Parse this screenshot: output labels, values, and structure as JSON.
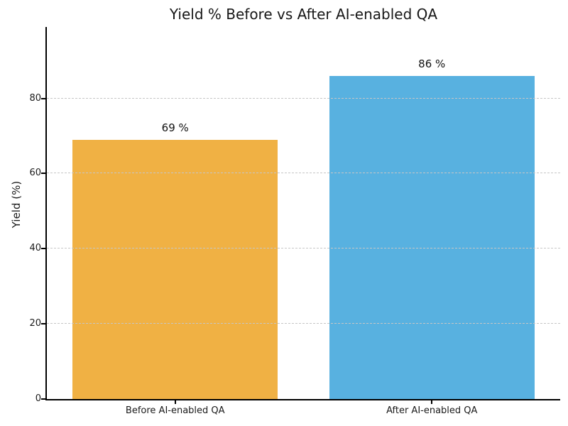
{
  "chart_data": {
    "type": "bar",
    "title": "Yield % Before vs After AI-enabled QA",
    "xlabel": "",
    "ylabel": "Yield (%)",
    "categories": [
      "Before AI-enabled QA",
      "After AI-enabled QA"
    ],
    "values": [
      69,
      86
    ],
    "bar_value_labels": [
      "69 %",
      "86 %"
    ],
    "bar_colors": [
      "#F0B144",
      "#58B1E0"
    ],
    "yticks": [
      0,
      20,
      40,
      60,
      80
    ],
    "ylim": [
      0,
      99
    ],
    "grid": {
      "axis": "y",
      "style": "dashed",
      "color": "#c6c6c6",
      "drawn_over_bars": true
    },
    "legend": "none",
    "background_color": "#ffffff",
    "spine_color": "#000000"
  }
}
